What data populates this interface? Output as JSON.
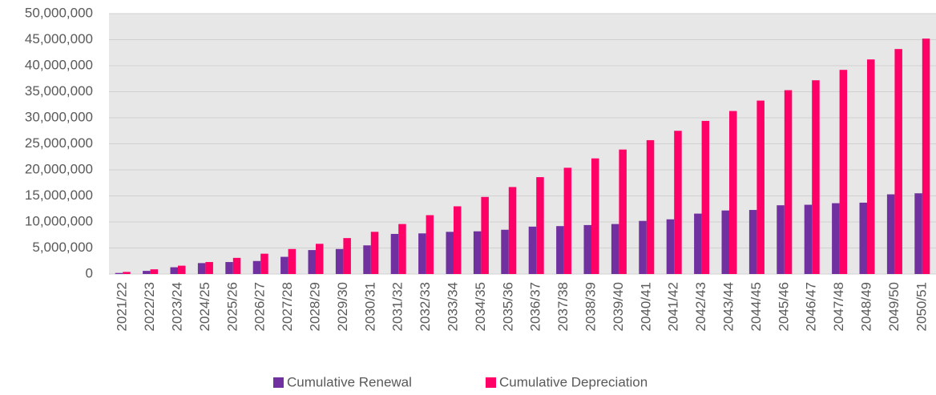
{
  "chart_data": {
    "type": "bar",
    "categories": [
      "2021/22",
      "2022/23",
      "2023/24",
      "2024/25",
      "2025/26",
      "2026/27",
      "2027/28",
      "2028/29",
      "2029/30",
      "2030/31",
      "2031/32",
      "2032/33",
      "2033/34",
      "2034/35",
      "2035/36",
      "2036/37",
      "2037/38",
      "2038/39",
      "2039/40",
      "2040/41",
      "2041/42",
      "2042/43",
      "2043/44",
      "2044/45",
      "2045/46",
      "2046/47",
      "2047/48",
      "2048/49",
      "2049/50",
      "2050/51"
    ],
    "series": [
      {
        "name": "Cumulative Renewal",
        "color": "#7030a0",
        "values": [
          200000,
          600000,
          1300000,
          2100000,
          2300000,
          2500000,
          3300000,
          4600000,
          4800000,
          5500000,
          7700000,
          7800000,
          8100000,
          8200000,
          8500000,
          9100000,
          9200000,
          9400000,
          9600000,
          10200000,
          10500000,
          11600000,
          12200000,
          12300000,
          13200000,
          13300000,
          13600000,
          13700000,
          15300000,
          15500000
        ]
      },
      {
        "name": "Cumulative Depreciation",
        "color": "#ff0066",
        "values": [
          400000,
          900000,
          1600000,
          2300000,
          3100000,
          3900000,
          4800000,
          5800000,
          6900000,
          8100000,
          9600000,
          11300000,
          13000000,
          14800000,
          16700000,
          18600000,
          20400000,
          22200000,
          23900000,
          25700000,
          27500000,
          29400000,
          31300000,
          33300000,
          35300000,
          37200000,
          39200000,
          41200000,
          43200000,
          45200000
        ]
      }
    ],
    "ylim": [
      0,
      50000000
    ],
    "yticks": [
      0,
      {
        "value": 5000000,
        "label": "5,000,000"
      },
      {
        "value": 10000000,
        "label": "10,000,000"
      },
      {
        "value": 15000000,
        "label": "15,000,000"
      },
      {
        "value": 20000000,
        "label": "20,000,000"
      },
      {
        "value": 25000000,
        "label": "25,000,000"
      },
      {
        "value": 30000000,
        "label": "30,000,000"
      },
      {
        "value": 35000000,
        "label": "35,000,000"
      },
      {
        "value": 40000000,
        "label": "40,000,000"
      },
      {
        "value": 45000000,
        "label": "45,000,000"
      },
      {
        "value": 50000000,
        "label": "50,000,000"
      }
    ],
    "grid": true,
    "legend": "bottom"
  }
}
